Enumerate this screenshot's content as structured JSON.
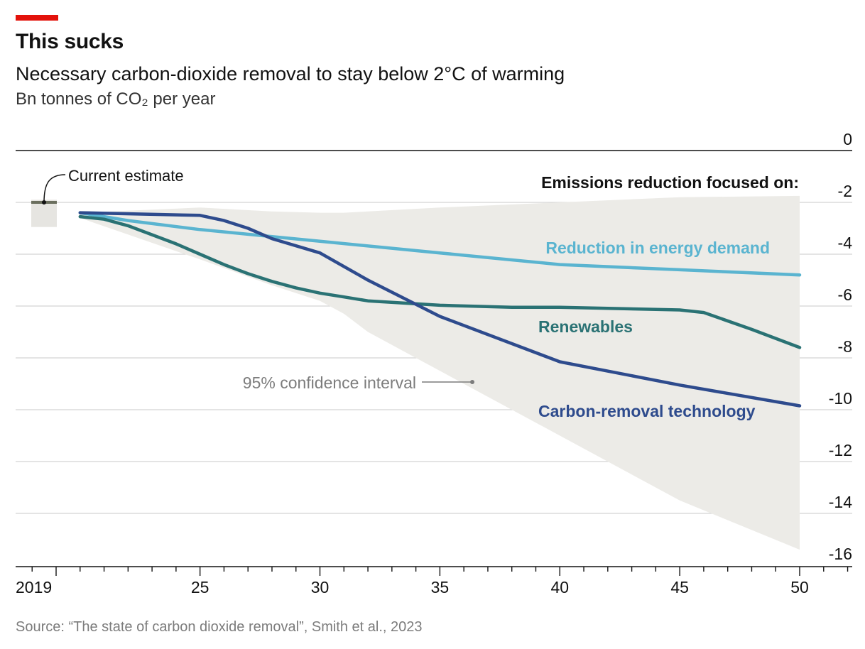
{
  "header": {
    "title": "This sucks",
    "subtitle": "Necessary carbon-dioxide removal to stay below 2°C of warming",
    "unit": "Bn tonnes of CO₂ per year"
  },
  "source": "Source: “The state of carbon dioxide removal”, Smith et al., 2023",
  "colors": {
    "accent_red": "#e3120b",
    "energy_demand": "#5ab4d0",
    "renewables": "#2a7274",
    "carbon_removal": "#2e4b8d",
    "confidence_band": "#ecebe7",
    "current_estimate_box": "#e6e5e1",
    "current_estimate_marker": "#6b6f5e"
  },
  "chart_data": {
    "type": "line",
    "xlim": [
      2018,
      2052
    ],
    "ylim": [
      -16,
      0
    ],
    "x_ticks": [
      2019,
      2025,
      2030,
      2035,
      2040,
      2045,
      2050
    ],
    "x_tick_labels": [
      "2019",
      "25",
      "30",
      "35",
      "40",
      "45",
      "50"
    ],
    "y_ticks": [
      0,
      -2,
      -4,
      -6,
      -8,
      -10,
      -12,
      -14,
      -16
    ],
    "y_tick_labels": [
      "0",
      "-2",
      "-4",
      "-6",
      "-8",
      "-10",
      "-12",
      "-14",
      "-16"
    ],
    "grid": true,
    "legend_title": "Emissions reduction focused on:",
    "series": [
      {
        "name": "Reduction in energy demand",
        "color": "#5ab4d0",
        "x": [
          2020,
          2022,
          2025,
          2030,
          2035,
          2040,
          2045,
          2050
        ],
        "y": [
          -2.4,
          -2.7,
          -3.05,
          -3.5,
          -3.95,
          -4.4,
          -4.6,
          -4.8
        ]
      },
      {
        "name": "Renewables",
        "color": "#2a7274",
        "x": [
          2020,
          2021,
          2022,
          2023,
          2024,
          2025,
          2026,
          2027,
          2028,
          2029,
          2030,
          2031,
          2032,
          2035,
          2038,
          2040,
          2045,
          2046,
          2048,
          2050
        ],
        "y": [
          -2.55,
          -2.65,
          -2.9,
          -3.25,
          -3.6,
          -4.0,
          -4.4,
          -4.75,
          -5.05,
          -5.3,
          -5.5,
          -5.65,
          -5.8,
          -5.97,
          -6.05,
          -6.05,
          -6.15,
          -6.25,
          -6.9,
          -7.6
        ]
      },
      {
        "name": "Carbon-removal technology",
        "color": "#2e4b8d",
        "x": [
          2020,
          2025,
          2026,
          2027,
          2028,
          2030,
          2032,
          2035,
          2040,
          2045,
          2050
        ],
        "y": [
          -2.4,
          -2.5,
          -2.7,
          -3.0,
          -3.4,
          -3.95,
          -5.0,
          -6.4,
          -8.15,
          -9.05,
          -9.85
        ]
      }
    ],
    "confidence_interval": {
      "label": "95% confidence interval",
      "x": [
        2020,
        2025,
        2028,
        2030,
        2031,
        2032,
        2035,
        2040,
        2045,
        2050
      ],
      "upper": [
        -2.4,
        -2.2,
        -2.35,
        -2.4,
        -2.4,
        -2.35,
        -2.2,
        -2.0,
        -1.8,
        -1.75
      ],
      "lower": [
        -2.6,
        -4.2,
        -5.2,
        -5.8,
        -6.3,
        -7.0,
        -8.5,
        -11.0,
        -13.5,
        -15.4
      ]
    },
    "current_estimate": {
      "label": "Current estimate",
      "x": 2019,
      "value": -2,
      "range": [
        -2.95,
        -1.9
      ]
    }
  }
}
